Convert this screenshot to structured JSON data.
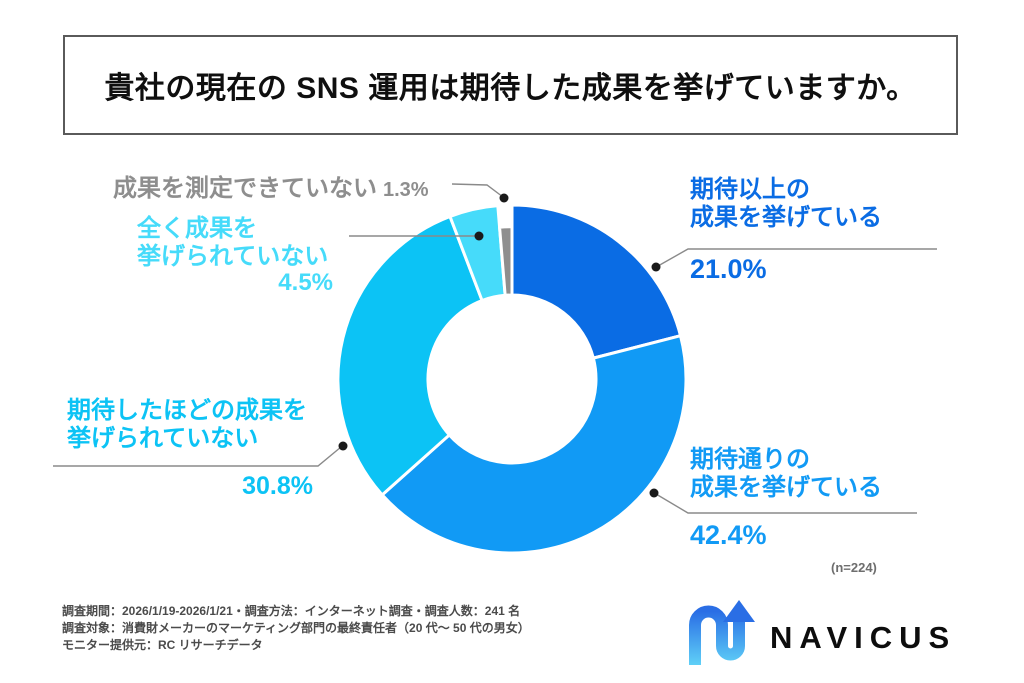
{
  "title": "貴社の現在の SNS 運用は期待した成果を挙げていますか。",
  "chart_data": {
    "type": "pie",
    "style": "donut",
    "start_angle_deg": 0,
    "direction": "clockwise",
    "unit": "%",
    "sample_note": "(n=224)",
    "segments": [
      {
        "label": "期待以上の成果を挙げている",
        "label_lines": [
          "期待以上の",
          "成果を挙げている"
        ],
        "value": 21.0,
        "pct_display": "21.0%",
        "color": "#0a6ce4",
        "inset": false
      },
      {
        "label": "期待通りの成果を挙げている",
        "label_lines": [
          "期待通りの",
          "成果を挙げている"
        ],
        "value": 42.4,
        "pct_display": "42.4%",
        "color": "#119af5",
        "inset": false
      },
      {
        "label": "期待したほどの成果を挙げられていない",
        "label_lines": [
          "期待したほどの成果を",
          "挙げられていない"
        ],
        "value": 30.8,
        "pct_display": "30.8%",
        "color": "#0cc3f5",
        "inset": false
      },
      {
        "label": "全く成果を挙げられていない",
        "label_lines": [
          "全く成果を",
          "挙げられていない"
        ],
        "value": 4.5,
        "pct_display": "4.5%",
        "color": "#46dbfa",
        "inset": false
      },
      {
        "label": "成果を測定できていない",
        "label_lines": [
          "成果を測定できていない"
        ],
        "value": 1.3,
        "pct_display": "1.3%",
        "color": "#8e8e8e",
        "inset": true
      }
    ]
  },
  "footnotes": {
    "lines": [
      "調査期間：2026/1/19-2026/1/21・調査方法：インターネット調査・調査人数：241 名",
      "調査対象：消費財メーカーのマーケティング部門の最終責任者（20 代〜 50 代の男女）",
      "モニター提供元：RC リサーチデータ"
    ]
  },
  "logo": {
    "brand": "NAVICUS"
  }
}
